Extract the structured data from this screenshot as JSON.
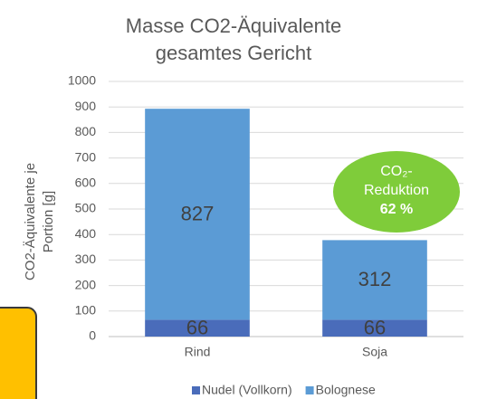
{
  "chart_data": {
    "type": "bar",
    "stacked": true,
    "title": [
      "Masse CO2-Äquivalente",
      "gesamtes Gericht"
    ],
    "ylabel": [
      "CO2-Äquivalente je",
      "Portion [g]"
    ],
    "categories": [
      "Rind",
      "Soja"
    ],
    "series": [
      {
        "name": "Nudel (Vollkorn)",
        "color": "#4a6cba",
        "values": [
          66,
          66
        ]
      },
      {
        "name": "Bolognese",
        "color": "#5b9bd5",
        "values": [
          827,
          312
        ]
      }
    ],
    "ylim": [
      0,
      1000
    ],
    "yticks": [
      0,
      100,
      200,
      300,
      400,
      500,
      600,
      700,
      800,
      900,
      1000
    ],
    "grid": true,
    "annotation": {
      "lines": [
        "CO₂-",
        "Reduktion",
        "62 %"
      ],
      "color": "#7fcc3a"
    }
  }
}
